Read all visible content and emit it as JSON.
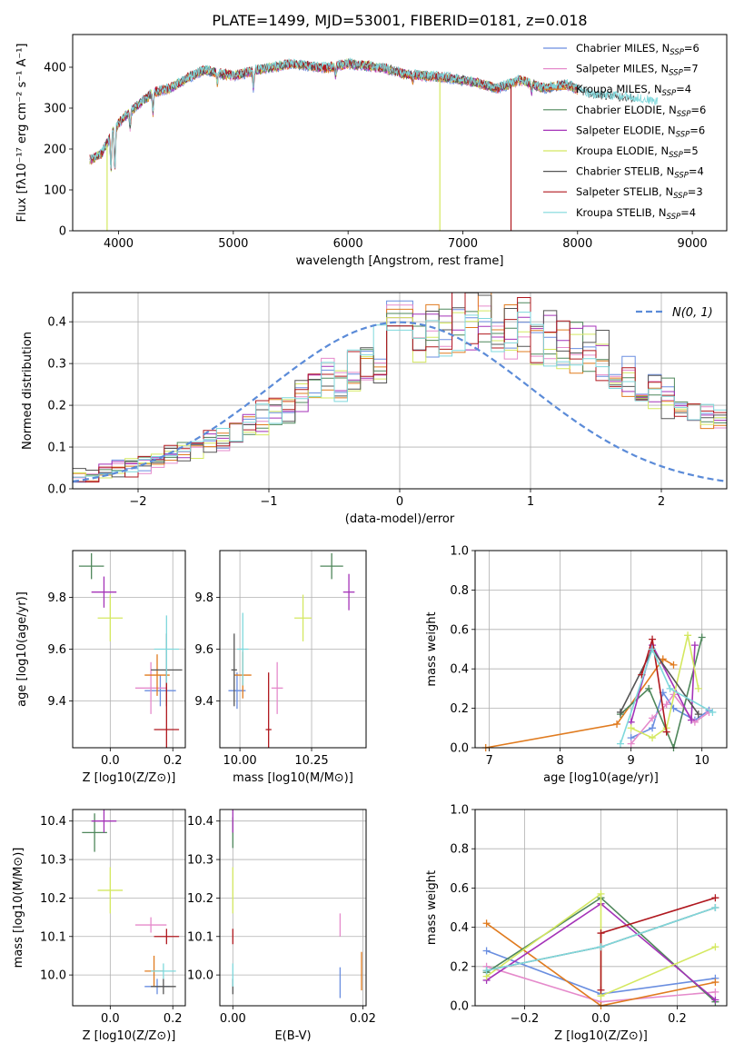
{
  "title": "PLATE=1499, MJD=53001, FIBERID=0181, z=0.018",
  "colors": {
    "Chabrier MILES": "#6a8ee0",
    "Salpeter MILES": "#e58acb",
    "Kroupa MILES": "#e07b1f",
    "Chabrier ELODIE": "#4f875b",
    "Salpeter ELODIE": "#a432b8",
    "Kroupa ELODIE": "#d4e860",
    "Chabrier STELIB": "#555555",
    "Salpeter STELIB": "#b0181f",
    "Kroupa STELIB": "#7fd8dc"
  },
  "chart_data": [
    {
      "id": "spectrum",
      "type": "line",
      "title": "PLATE=1499, MJD=53001, FIBERID=0181, z=0.018",
      "xlabel": "wavelength [Angstrom, rest frame]",
      "ylabel": "Flux [fλ10⁻¹⁷ erg cm⁻² s⁻¹ A⁻¹]",
      "xlim": [
        3600,
        9300
      ],
      "ylim": [
        0,
        480
      ],
      "xticks": [
        4000,
        5000,
        6000,
        7000,
        8000,
        9000
      ],
      "yticks": [
        0,
        100,
        200,
        300,
        400
      ],
      "grid": false,
      "legend_position": "top-right",
      "legend": [
        {
          "label": "Chabrier MILES, N",
          "sub": "SSP",
          "value": "=6"
        },
        {
          "label": "Salpeter MILES, N",
          "sub": "SSP",
          "value": "=7"
        },
        {
          "label": "Kroupa MILES, N",
          "sub": "SSP",
          "value": "=4"
        },
        {
          "label": "Chabrier ELODIE, N",
          "sub": "SSP",
          "value": "=6"
        },
        {
          "label": "Salpeter ELODIE, N",
          "sub": "SSP",
          "value": "=6"
        },
        {
          "label": "Kroupa ELODIE, N",
          "sub": "SSP",
          "value": "=5"
        },
        {
          "label": "Chabrier STELIB, N",
          "sub": "SSP",
          "value": "=4"
        },
        {
          "label": "Salpeter STELIB, N",
          "sub": "SSP",
          "value": "=3"
        },
        {
          "label": "Kroupa STELIB, N",
          "sub": "SSP",
          "value": "=4"
        }
      ],
      "envelope": {
        "x": [
          3750,
          3850,
          3950,
          4050,
          4150,
          4300,
          4450,
          4600,
          4750,
          5000,
          5200,
          5500,
          5800,
          6000,
          6300,
          6500,
          6700,
          6900,
          7100,
          7300,
          7500,
          7700,
          7900,
          8100,
          8300,
          8500,
          8700
        ],
        "y": [
          170,
          185,
          240,
          275,
          300,
          335,
          345,
          370,
          390,
          375,
          390,
          405,
          395,
          405,
          395,
          380,
          375,
          370,
          360,
          345,
          365,
          345,
          355,
          330,
          325,
          320,
          310
        ]
      },
      "dropouts": [
        {
          "series": "Kroupa ELODIE",
          "x": 3900,
          "y": 0
        },
        {
          "series": "Kroupa ELODIE",
          "x": 6800,
          "y": 0
        },
        {
          "series": "Salpeter STELIB",
          "x": 7420,
          "y": 0
        }
      ]
    },
    {
      "id": "residuals",
      "type": "line",
      "xlabel": "(data-model)/error",
      "ylabel": "Normed distribution",
      "xlim": [
        -2.5,
        2.5
      ],
      "ylim": [
        0,
        0.47
      ],
      "xticks": [
        -2,
        -1,
        0,
        1,
        2
      ],
      "yticks": [
        0.0,
        0.1,
        0.2,
        0.3,
        0.4
      ],
      "grid": true,
      "legend_position": "top-right",
      "legend_label": "N(0, 1)",
      "bin_width": 0.1,
      "bin_start": -2.5,
      "base_profile": [
        0.03,
        0.03,
        0.04,
        0.05,
        0.05,
        0.06,
        0.07,
        0.08,
        0.09,
        0.1,
        0.11,
        0.12,
        0.14,
        0.15,
        0.17,
        0.19,
        0.2,
        0.22,
        0.24,
        0.26,
        0.27,
        0.29,
        0.3,
        0.32,
        0.33,
        0.35,
        0.36,
        0.37,
        0.38,
        0.39,
        0.4,
        0.4,
        0.39,
        0.39,
        0.38,
        0.37,
        0.36,
        0.35,
        0.34,
        0.32,
        0.31,
        0.29,
        0.27,
        0.26,
        0.24,
        0.22,
        0.2,
        0.19,
        0.17,
        0.15,
        0.14,
        0.12,
        0.11,
        0.1,
        0.09,
        0.08,
        0.07,
        0.06,
        0.05,
        0.05,
        0.04,
        0.04,
        0.03,
        0.03,
        0.03,
        0.03,
        0.02,
        0.02,
        0.02,
        0.02,
        0.02,
        0.02,
        0.02,
        0.02,
        0.02,
        0.02,
        0.02,
        0.02,
        0.02,
        0.02
      ],
      "peak_values": [
        0.45,
        0.44,
        0.43,
        0.42,
        0.41,
        0.41,
        0.39,
        0.39,
        0.38
      ]
    },
    {
      "id": "age_vs_z",
      "type": "scatter",
      "xlabel": "Z [log10(Z/Z⊙)]",
      "ylabel": "age [log10(age/yr)]",
      "xlim": [
        -0.12,
        0.24
      ],
      "ylim": [
        9.22,
        9.98
      ],
      "xticks": [
        0.0,
        0.2
      ],
      "yticks": [
        9.4,
        9.6,
        9.8
      ],
      "grid": true,
      "points": [
        {
          "series": "Chabrier MILES",
          "x": 0.16,
          "y": 9.44,
          "xerr": 0.05,
          "yerr": 0.06
        },
        {
          "series": "Salpeter MILES",
          "x": 0.13,
          "y": 9.45,
          "xerr": 0.05,
          "yerr": 0.1
        },
        {
          "series": "Kroupa MILES",
          "x": 0.15,
          "y": 9.5,
          "xerr": 0.04,
          "yerr": 0.08
        },
        {
          "series": "Chabrier ELODIE",
          "x": -0.06,
          "y": 9.92,
          "xerr": 0.04,
          "yerr": 0.05
        },
        {
          "series": "Salpeter ELODIE",
          "x": -0.02,
          "y": 9.82,
          "xerr": 0.04,
          "yerr": 0.06
        },
        {
          "series": "Kroupa ELODIE",
          "x": 0.0,
          "y": 9.72,
          "xerr": 0.04,
          "yerr": 0.09
        },
        {
          "series": "Chabrier STELIB",
          "x": 0.18,
          "y": 9.52,
          "xerr": 0.05,
          "yerr": 0.14
        },
        {
          "series": "Salpeter STELIB",
          "x": 0.18,
          "y": 9.29,
          "xerr": 0.04,
          "yerr": 0.23
        },
        {
          "series": "Kroupa STELIB",
          "x": 0.18,
          "y": 9.6,
          "xerr": 0.04,
          "yerr": 0.13
        }
      ]
    },
    {
      "id": "age_vs_mass",
      "type": "scatter",
      "xlabel": "mass [log10(M/M⊙)]",
      "ylabel": "",
      "xlim": [
        9.93,
        10.44
      ],
      "ylim": [
        9.22,
        9.98
      ],
      "xticks": [
        10.0,
        10.25
      ],
      "yticks": [
        9.4,
        9.6,
        9.8
      ],
      "grid": true,
      "points": [
        {
          "series": "Chabrier MILES",
          "x": 9.99,
          "y": 9.44,
          "xerr": 0.03,
          "yerr": 0.07
        },
        {
          "series": "Salpeter MILES",
          "x": 10.13,
          "y": 9.45,
          "xerr": 0.02,
          "yerr": 0.1
        },
        {
          "series": "Kroupa MILES",
          "x": 10.01,
          "y": 9.5,
          "xerr": 0.03,
          "yerr": 0.09
        },
        {
          "series": "Chabrier ELODIE",
          "x": 10.32,
          "y": 9.92,
          "xerr": 0.04,
          "yerr": 0.05
        },
        {
          "series": "Salpeter ELODIE",
          "x": 10.38,
          "y": 9.82,
          "xerr": 0.02,
          "yerr": 0.07
        },
        {
          "series": "Kroupa ELODIE",
          "x": 10.22,
          "y": 9.72,
          "xerr": 0.03,
          "yerr": 0.09
        },
        {
          "series": "Chabrier STELIB",
          "x": 9.98,
          "y": 9.52,
          "xerr": 0.01,
          "yerr": 0.14
        },
        {
          "series": "Salpeter STELIB",
          "x": 10.1,
          "y": 9.29,
          "xerr": 0.01,
          "yerr": 0.22
        },
        {
          "series": "Kroupa STELIB",
          "x": 10.01,
          "y": 9.6,
          "xerr": 0.02,
          "yerr": 0.14
        }
      ]
    },
    {
      "id": "weight_vs_age",
      "type": "line",
      "xlabel": "age [log10(age/yr)]",
      "ylabel": "mass weight",
      "xlim": [
        6.8,
        10.35
      ],
      "ylim": [
        0,
        1
      ],
      "xticks": [
        7,
        8,
        9,
        10
      ],
      "yticks": [
        0.0,
        0.2,
        0.4,
        0.6,
        0.8,
        1.0
      ],
      "grid": true,
      "series": [
        {
          "name": "Chabrier MILES",
          "x": [
            9.0,
            9.3,
            9.45,
            9.6,
            9.9,
            10.1
          ],
          "y": [
            0.05,
            0.1,
            0.28,
            0.2,
            0.14,
            0.19
          ]
        },
        {
          "name": "Salpeter MILES",
          "x": [
            9.0,
            9.3,
            9.5,
            9.6,
            9.9,
            10.1
          ],
          "y": [
            0.02,
            0.15,
            0.22,
            0.27,
            0.13,
            0.18
          ]
        },
        {
          "name": "Kroupa MILES",
          "x": [
            6.95,
            8.8,
            9.45,
            9.6
          ],
          "y": [
            0.0,
            0.12,
            0.45,
            0.42
          ]
        },
        {
          "name": "Chabrier ELODIE",
          "x": [
            8.85,
            9.25,
            9.6,
            10.0
          ],
          "y": [
            0.17,
            0.3,
            0.0,
            0.56
          ]
        },
        {
          "name": "Salpeter ELODIE",
          "x": [
            9.0,
            9.3,
            9.85,
            9.9
          ],
          "y": [
            0.13,
            0.52,
            0.14,
            0.52
          ]
        },
        {
          "name": "Kroupa ELODIE",
          "x": [
            9.0,
            9.3,
            9.5,
            9.8,
            9.95
          ],
          "y": [
            0.1,
            0.05,
            0.1,
            0.57,
            0.3
          ]
        },
        {
          "name": "Chabrier STELIB",
          "x": [
            8.85,
            9.3,
            9.95
          ],
          "y": [
            0.18,
            0.5,
            0.17
          ]
        },
        {
          "name": "Salpeter STELIB",
          "x": [
            9.15,
            9.3,
            9.5
          ],
          "y": [
            0.37,
            0.55,
            0.08
          ]
        },
        {
          "name": "Kroupa STELIB",
          "x": [
            8.85,
            9.3,
            9.55,
            10.15
          ],
          "y": [
            0.02,
            0.5,
            0.3,
            0.18
          ]
        }
      ]
    },
    {
      "id": "mass_vs_z",
      "type": "scatter",
      "xlabel": "Z [log10(Z/Z⊙)]",
      "ylabel": "mass [log10(M/M⊙)]",
      "xlim": [
        -0.12,
        0.24
      ],
      "ylim": [
        9.92,
        10.43
      ],
      "xticks": [
        0.0,
        0.2
      ],
      "yticks": [
        10.0,
        10.1,
        10.2,
        10.3,
        10.4
      ],
      "grid": true,
      "points": [
        {
          "series": "Chabrier MILES",
          "x": 0.15,
          "y": 9.97,
          "xerr": 0.04,
          "yerr": 0.02
        },
        {
          "series": "Salpeter MILES",
          "x": 0.13,
          "y": 10.13,
          "xerr": 0.05,
          "yerr": 0.02
        },
        {
          "series": "Kroupa MILES",
          "x": 0.14,
          "y": 10.01,
          "xerr": 0.03,
          "yerr": 0.04
        },
        {
          "series": "Chabrier ELODIE",
          "x": -0.05,
          "y": 10.37,
          "xerr": 0.04,
          "yerr": 0.05
        },
        {
          "series": "Salpeter ELODIE",
          "x": -0.02,
          "y": 10.4,
          "xerr": 0.04,
          "yerr": 0.03
        },
        {
          "series": "Kroupa ELODIE",
          "x": 0.0,
          "y": 10.22,
          "xerr": 0.04,
          "yerr": 0.06
        },
        {
          "series": "Chabrier STELIB",
          "x": 0.17,
          "y": 9.97,
          "xerr": 0.04,
          "yerr": 0.02
        },
        {
          "series": "Salpeter STELIB",
          "x": 0.18,
          "y": 10.1,
          "xerr": 0.04,
          "yerr": 0.02
        },
        {
          "series": "Kroupa STELIB",
          "x": 0.17,
          "y": 10.01,
          "xerr": 0.04,
          "yerr": 0.02
        }
      ]
    },
    {
      "id": "mass_vs_ebv",
      "type": "scatter",
      "xlabel": "E(B-V)",
      "ylabel": "",
      "xlim": [
        -0.002,
        0.0205
      ],
      "ylim": [
        9.92,
        10.43
      ],
      "xticks": [
        0.0,
        0.02
      ],
      "xtick_labels": [
        "0.00",
        "0.02"
      ],
      "yticks": [
        10.0,
        10.1,
        10.2,
        10.3,
        10.4
      ],
      "grid": true,
      "points": [
        {
          "series": "Chabrier MILES",
          "x": 0.0165,
          "y": 9.98,
          "xerr": 0.0,
          "yerr": 0.04
        },
        {
          "series": "Salpeter MILES",
          "x": 0.0165,
          "y": 10.13,
          "xerr": 0.0,
          "yerr": 0.03
        },
        {
          "series": "Kroupa MILES",
          "x": 0.0198,
          "y": 10.01,
          "xerr": 0.0,
          "yerr": 0.05
        },
        {
          "series": "Chabrier ELODIE",
          "x": 0.0,
          "y": 10.37,
          "xerr": 0.0,
          "yerr": 0.04
        },
        {
          "series": "Salpeter ELODIE",
          "x": 0.0,
          "y": 10.4,
          "xerr": 0.0,
          "yerr": 0.03
        },
        {
          "series": "Kroupa ELODIE",
          "x": 0.0,
          "y": 10.22,
          "xerr": 0.0,
          "yerr": 0.06
        },
        {
          "series": "Chabrier STELIB",
          "x": 0.0,
          "y": 9.97,
          "xerr": 0.0,
          "yerr": 0.02
        },
        {
          "series": "Salpeter STELIB",
          "x": 0.0,
          "y": 10.1,
          "xerr": 0.0,
          "yerr": 0.02
        },
        {
          "series": "Kroupa STELIB",
          "x": 0.0,
          "y": 10.0,
          "xerr": 0.0,
          "yerr": 0.03
        }
      ]
    },
    {
      "id": "weight_vs_z",
      "type": "line",
      "xlabel": "Z [log10(Z/Z⊙)]",
      "ylabel": "mass weight",
      "xlim": [
        -0.33,
        0.33
      ],
      "ylim": [
        0,
        1
      ],
      "xticks": [
        -0.2,
        0.0,
        0.2
      ],
      "yticks": [
        0.0,
        0.2,
        0.4,
        0.6,
        0.8,
        1.0
      ],
      "grid": true,
      "series": [
        {
          "name": "Chabrier MILES",
          "x": [
            -0.3,
            0.0,
            0.3
          ],
          "y": [
            0.28,
            0.06,
            0.14
          ]
        },
        {
          "name": "Salpeter MILES",
          "x": [
            -0.3,
            0.0,
            0.3
          ],
          "y": [
            0.2,
            0.02,
            0.07
          ]
        },
        {
          "name": "Kroupa MILES",
          "x": [
            -0.3,
            0.0,
            0.3
          ],
          "y": [
            0.42,
            0.0,
            0.12
          ]
        },
        {
          "name": "Chabrier ELODIE",
          "x": [
            -0.3,
            0.0,
            0.3
          ],
          "y": [
            0.17,
            0.55,
            0.02
          ]
        },
        {
          "name": "Salpeter ELODIE",
          "x": [
            -0.3,
            0.0,
            0.3
          ],
          "y": [
            0.13,
            0.52,
            0.03
          ]
        },
        {
          "name": "Kroupa ELODIE",
          "x": [
            -0.3,
            0.0,
            0.0,
            0.3
          ],
          "y": [
            0.15,
            0.57,
            0.05,
            0.3
          ]
        },
        {
          "name": "Chabrier STELIB",
          "x": [
            -0.3,
            0.0,
            0.3
          ],
          "y": [
            0.18,
            0.3,
            0.5
          ]
        },
        {
          "name": "Salpeter STELIB",
          "x": [
            0.0,
            0.0,
            0.3
          ],
          "y": [
            0.08,
            0.37,
            0.55
          ]
        },
        {
          "name": "Kroupa STELIB",
          "x": [
            -0.3,
            0.0,
            0.3
          ],
          "y": [
            0.18,
            0.3,
            0.5
          ]
        }
      ]
    }
  ]
}
